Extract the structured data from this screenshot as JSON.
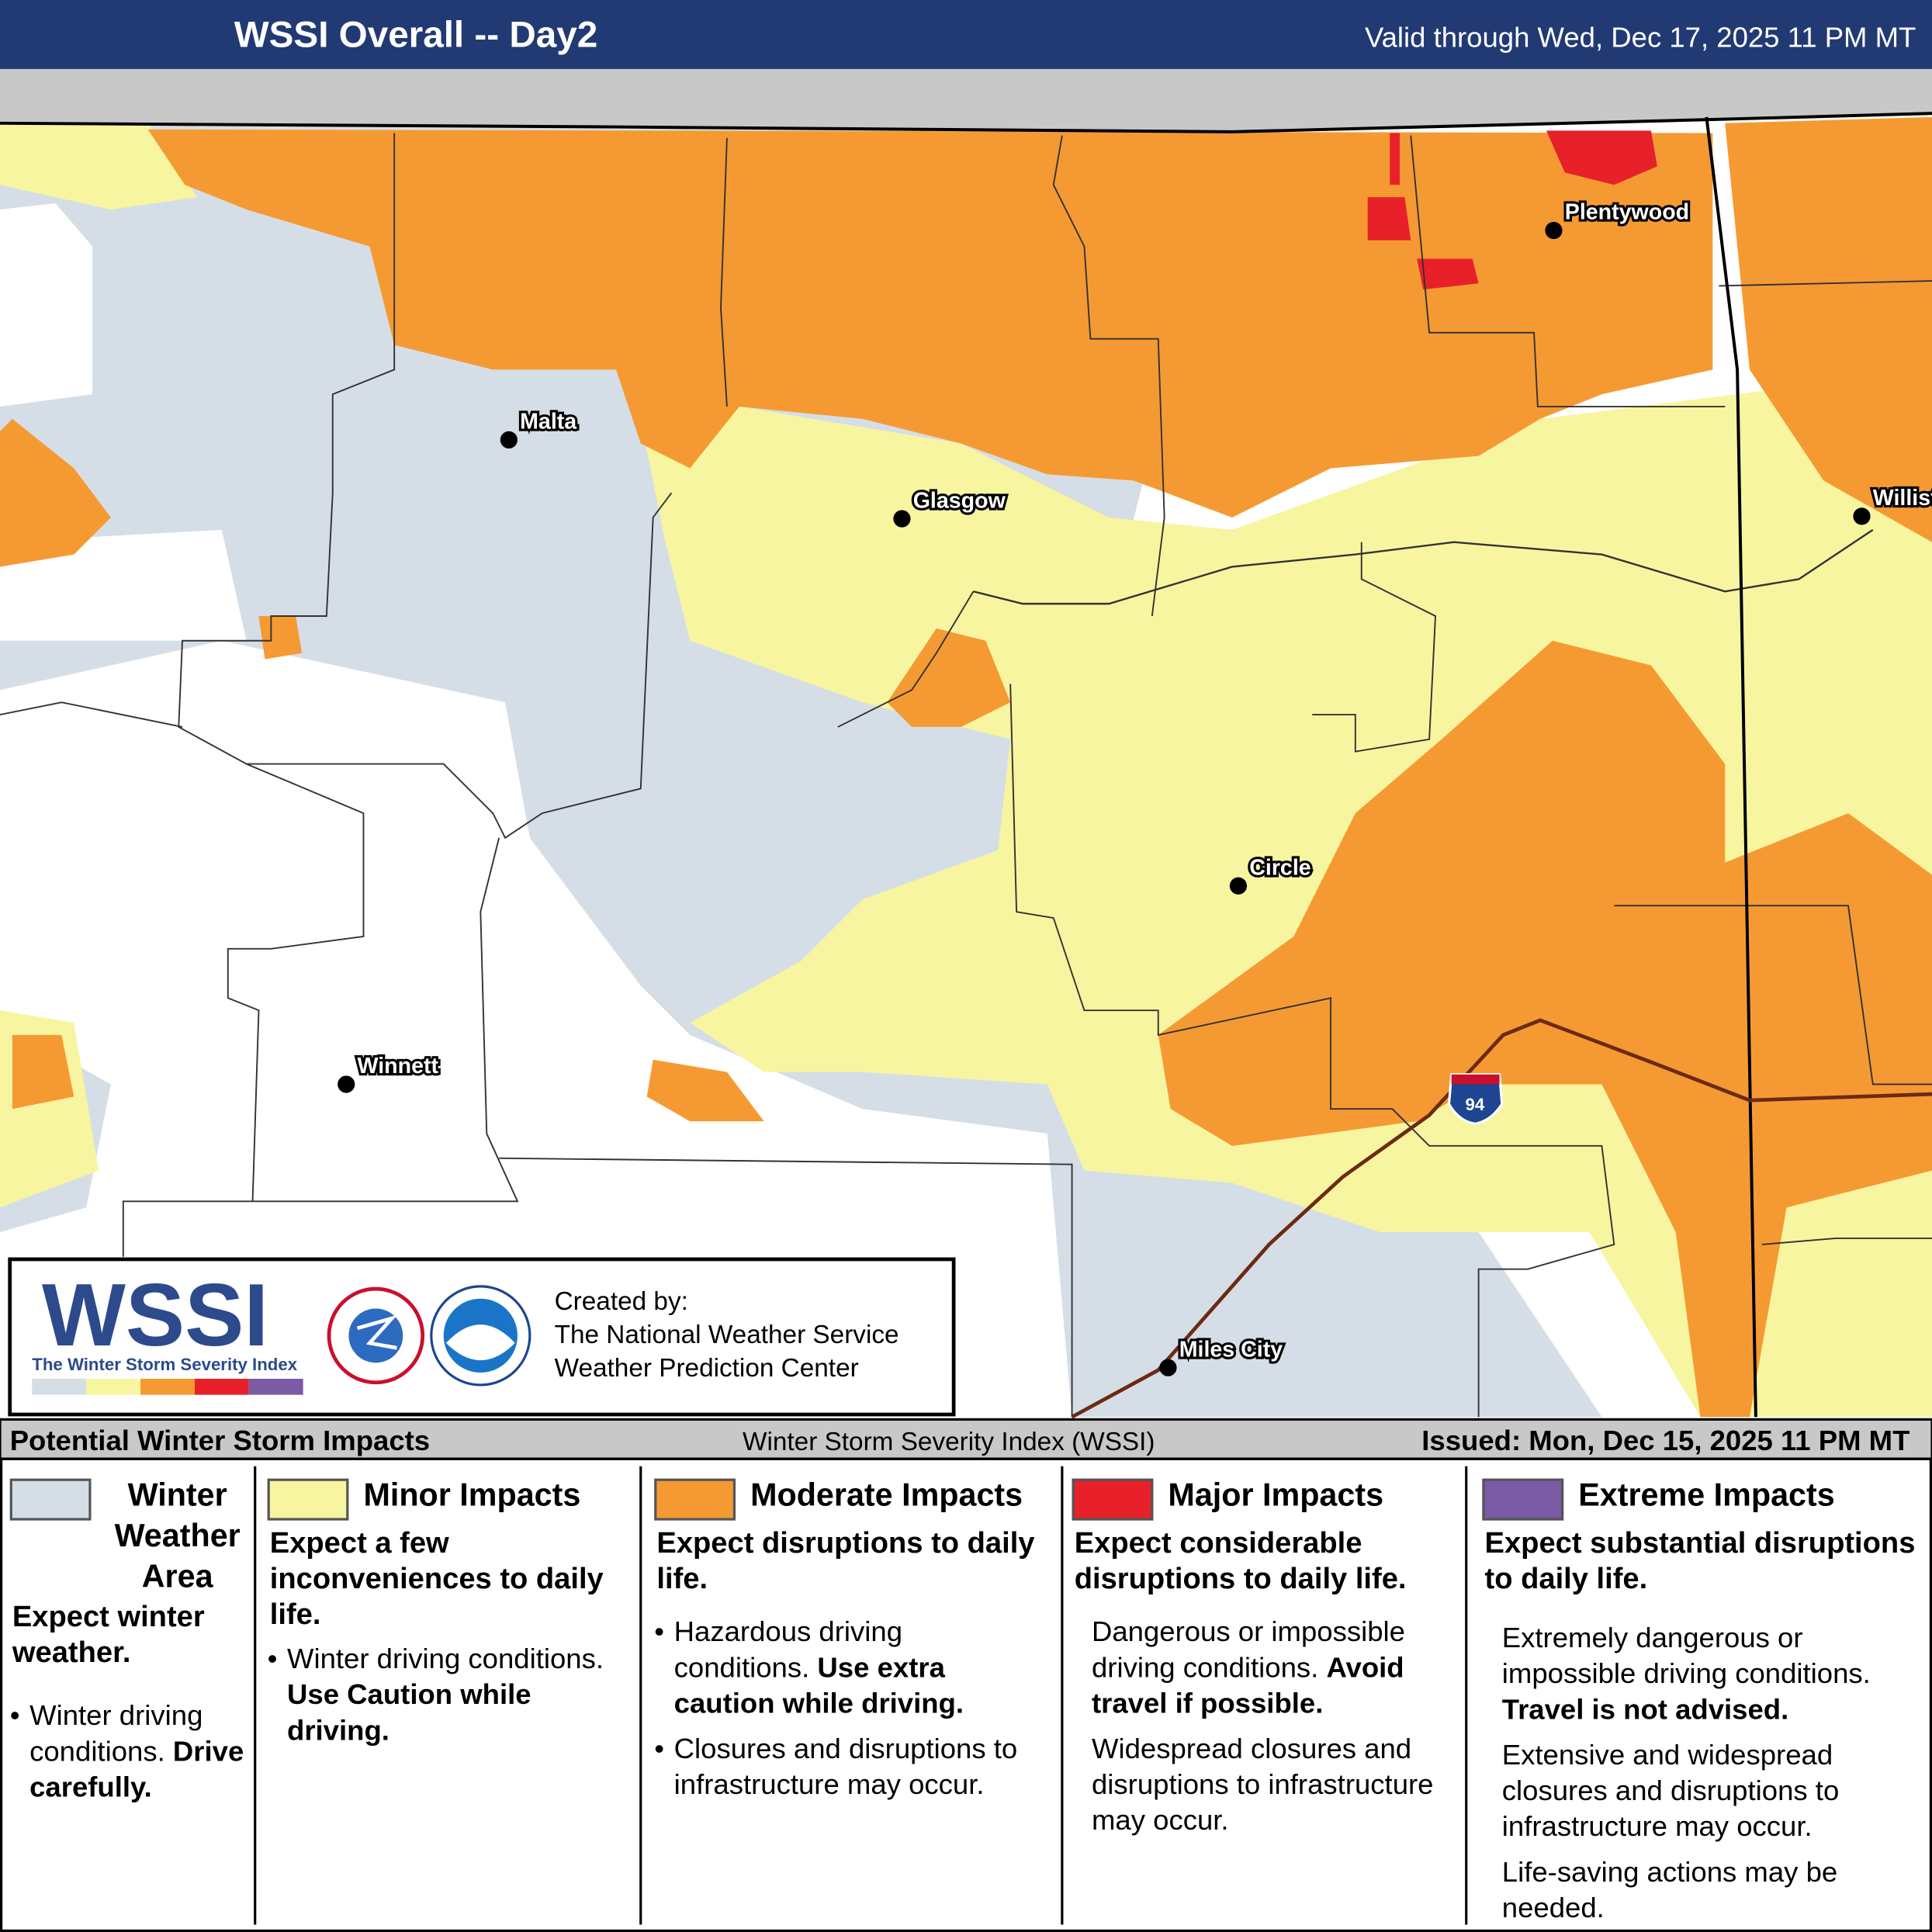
{
  "header": {
    "title": "WSSI Overall -- Day2",
    "valid": "Valid through Wed, Dec 17, 2025 11 PM MT"
  },
  "cities": [
    {
      "label": "Malta"
    },
    {
      "label": "Glasgow"
    },
    {
      "label": "Plentywood"
    },
    {
      "label": "Williston"
    },
    {
      "label": "Circle"
    },
    {
      "label": "Winnett"
    },
    {
      "label": "Miles City"
    }
  ],
  "highway": "94",
  "logo": {
    "wssi": "WSSI",
    "tagline": "The Winter Storm Severity Index",
    "credit": [
      "Created by:",
      "The National Weather Service",
      "Weather Prediction Center"
    ]
  },
  "legend_bar": {
    "left": "Potential Winter Storm Impacts",
    "center": "Winter Storm Severity Index (WSSI)",
    "right": "Issued: Mon, Dec 15, 2025 11 PM MT"
  },
  "legend": [
    {
      "name": "Winter Weather Area",
      "color": "#d5dee6",
      "summary": "Expect winter weather.",
      "details": [
        {
          "text": "Winter driving conditions.",
          "emphasis": "Drive carefully."
        }
      ]
    },
    {
      "name": "Minor Impacts",
      "color": "#f8f5a0",
      "summary": "Expect a few inconveniences to daily life.",
      "details": [
        {
          "text": "Winter driving conditions.",
          "emphasis": "Use Caution while driving."
        }
      ]
    },
    {
      "name": "Moderate Impacts",
      "color": "#f59a33",
      "summary": "Expect disruptions to daily life.",
      "details": [
        {
          "text": "Hazardous driving conditions.",
          "emphasis": "Use extra caution while driving."
        },
        {
          "text": "Closures and disruptions to infrastructure may occur."
        }
      ]
    },
    {
      "name": "Major Impacts",
      "color": "#e8202a",
      "summary": "Expect considerable disruptions to daily life.",
      "details": [
        {
          "text": "Dangerous or impossible driving conditions.",
          "emphasis": "Avoid travel if possible."
        },
        {
          "text": "Widespread closures and disruptions to infrastructure may occur."
        }
      ]
    },
    {
      "name": "Extreme Impacts",
      "color": "#7b5aa6",
      "summary": "Expect substantial disruptions to daily life.",
      "details": [
        {
          "text": "Extremely dangerous or impossible driving conditions.",
          "emphasis": "Travel is not advised."
        },
        {
          "text": "Extensive and widespread closures and disruptions to infrastructure may occur."
        },
        {
          "text": "Life-saving actions may be needed."
        }
      ]
    }
  ]
}
